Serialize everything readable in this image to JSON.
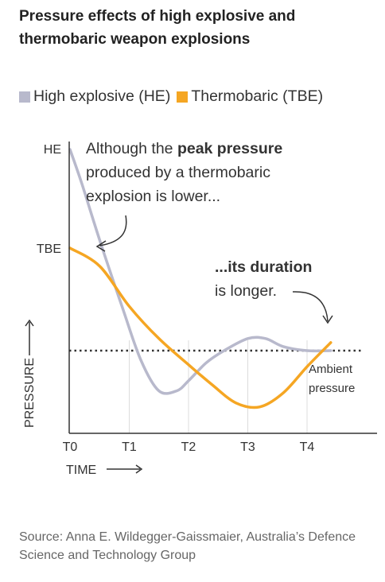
{
  "title": "Pressure effects of high explosive and thermobaric weapon explosions",
  "source": "Source: Anna E. Wildegger-Gaissmaier, Australia’s Defence Science and Technology Group",
  "colors": {
    "he": "#b8b9cc",
    "tbe": "#f5a623",
    "axis": "#333333",
    "grid": "#dcdcdc",
    "text": "#222222"
  },
  "chart_data": {
    "type": "line",
    "title": "Pressure effects of high explosive and thermobaric weapon explosions",
    "xlabel": "TIME",
    "ylabel": "PRESSURE",
    "x_ticks": [
      "T0",
      "T1",
      "T2",
      "T3",
      "T4"
    ],
    "y_ticks": [
      "HE",
      "TBE"
    ],
    "legend": [
      "High explosive (HE)",
      "Thermobaric (TBE)"
    ],
    "legend_position": "top",
    "grid": "vertical dotted lines at T1–T4",
    "series": [
      {
        "name": "High explosive (HE)",
        "color": "#b8b9cc",
        "x": [
          0,
          0.2,
          0.5,
          0.9,
          1.2,
          1.5,
          1.8,
          2.0,
          2.3,
          2.6,
          3.0,
          3.3,
          3.6,
          4.0,
          4.4
        ],
        "y": [
          1.0,
          0.83,
          0.55,
          0.2,
          -0.05,
          -0.2,
          -0.2,
          -0.15,
          -0.06,
          0.0,
          0.06,
          0.06,
          0.02,
          0.0,
          0.0
        ]
      },
      {
        "name": "Thermobaric (TBE)",
        "color": "#f5a623",
        "x": [
          0,
          0.5,
          1.0,
          1.5,
          2.0,
          2.4,
          2.8,
          3.2,
          3.6,
          4.0,
          4.4
        ],
        "y": [
          0.51,
          0.42,
          0.22,
          0.06,
          -0.07,
          -0.17,
          -0.26,
          -0.28,
          -0.21,
          -0.08,
          0.04
        ]
      }
    ],
    "reference_line": {
      "label": "Ambient pressure",
      "y": 0
    },
    "annotations": [
      {
        "parts": [
          "Although the ",
          "peak pressure",
          " produced by a thermobaric",
          "explosion is lower..."
        ]
      },
      {
        "parts": [
          "...its duration",
          "is longer."
        ]
      }
    ]
  },
  "annotation_1": {
    "line1_prefix": "Although the ",
    "line1_bold": "peak pressure",
    "line2": "produced by a thermobaric",
    "line3": "explosion is lower..."
  },
  "annotation_2": {
    "line1_bold": "...its duration",
    "line2": "is longer."
  }
}
